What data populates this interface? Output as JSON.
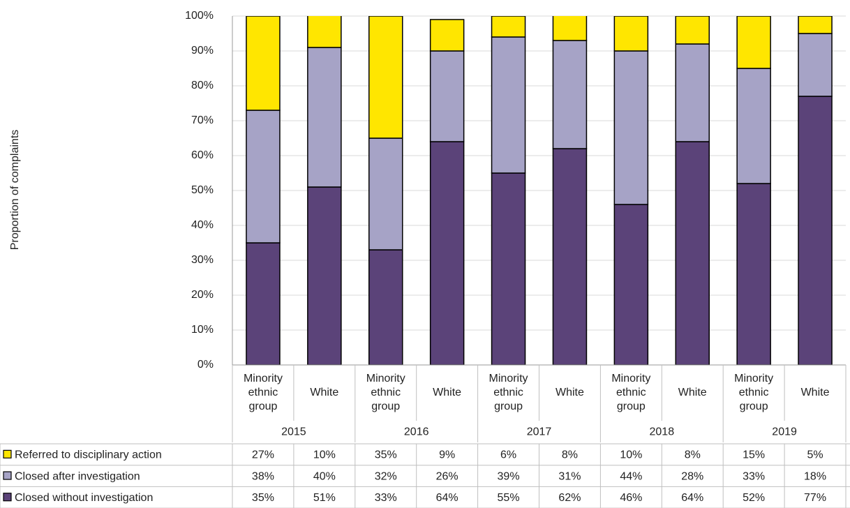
{
  "chart_data": {
    "type": "stacked_bar",
    "y_axis_label": "Proportion of complaints",
    "categories": [
      "Minority ethnic group",
      "White",
      "Minority ethnic group",
      "White",
      "Minority ethnic group",
      "White",
      "Minority ethnic group",
      "White",
      "Minority ethnic group",
      "White"
    ],
    "group_labels": [
      "2015",
      "2016",
      "2017",
      "2018",
      "2019"
    ],
    "series": [
      {
        "name": "Closed without investigation",
        "color": "#5b4379",
        "values": [
          35,
          51,
          33,
          64,
          55,
          62,
          46,
          64,
          52,
          77
        ],
        "value_labels": [
          "35%",
          "51%",
          "33%",
          "64%",
          "55%",
          "62%",
          "46%",
          "64%",
          "52%",
          "77%"
        ]
      },
      {
        "name": "Closed after investigation",
        "color": "#a6a3c6",
        "values": [
          38,
          40,
          32,
          26,
          39,
          31,
          44,
          28,
          33,
          18
        ],
        "value_labels": [
          "38%",
          "40%",
          "32%",
          "26%",
          "39%",
          "31%",
          "44%",
          "28%",
          "33%",
          "18%"
        ]
      },
      {
        "name": "Referred to disciplinary action",
        "color": "#ffe600",
        "values": [
          27,
          10,
          35,
          9,
          6,
          8,
          10,
          8,
          15,
          5
        ],
        "value_labels": [
          "27%",
          "10%",
          "35%",
          "9%",
          "6%",
          "8%",
          "10%",
          "8%",
          "15%",
          "5%"
        ]
      }
    ],
    "ylim": [
      0,
      100
    ],
    "yticks": [
      {
        "value": 0,
        "label": "0%"
      },
      {
        "value": 10,
        "label": "10%"
      },
      {
        "value": 20,
        "label": "20%"
      },
      {
        "value": 30,
        "label": "30%"
      },
      {
        "value": 40,
        "label": "40%"
      },
      {
        "value": 50,
        "label": "50%"
      },
      {
        "value": 60,
        "label": "60%"
      },
      {
        "value": 70,
        "label": "70%"
      },
      {
        "value": 80,
        "label": "80%"
      },
      {
        "value": 90,
        "label": "90%"
      },
      {
        "value": 100,
        "label": "100%"
      }
    ],
    "grid": true
  }
}
